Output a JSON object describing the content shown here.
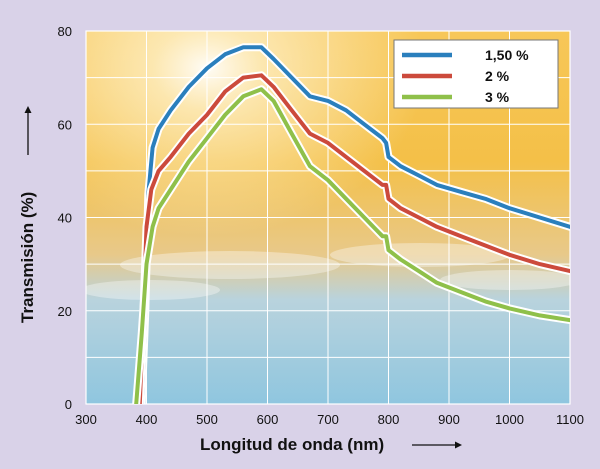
{
  "chart_data": {
    "type": "line",
    "xlabel": "Longitud de onda (nm)",
    "ylabel": "Transmisión (%)",
    "xlim": [
      300,
      1100
    ],
    "ylim": [
      0,
      80
    ],
    "x_ticks": [
      300,
      400,
      500,
      600,
      700,
      800,
      900,
      1000,
      1100
    ],
    "y_ticks": [
      0,
      20,
      40,
      60,
      80
    ],
    "grid": true,
    "legend_position": "top-right",
    "series": [
      {
        "name": "1,50 %",
        "color": "#2a7fbd",
        "points": [
          [
            392,
            0
          ],
          [
            398,
            20
          ],
          [
            403,
            45
          ],
          [
            410,
            55
          ],
          [
            420,
            59
          ],
          [
            440,
            63
          ],
          [
            470,
            68
          ],
          [
            500,
            72
          ],
          [
            530,
            75
          ],
          [
            560,
            76.5
          ],
          [
            590,
            76.5
          ],
          [
            610,
            74
          ],
          [
            640,
            70
          ],
          [
            670,
            66
          ],
          [
            700,
            65
          ],
          [
            730,
            63
          ],
          [
            760,
            60
          ],
          [
            790,
            57
          ],
          [
            796,
            56
          ],
          [
            800,
            53
          ],
          [
            820,
            51
          ],
          [
            850,
            49
          ],
          [
            880,
            47
          ],
          [
            920,
            45.5
          ],
          [
            960,
            44
          ],
          [
            1000,
            42
          ],
          [
            1050,
            40
          ],
          [
            1100,
            38
          ]
        ]
      },
      {
        "name": "2 %",
        "color": "#cc4a3c",
        "points": [
          [
            389,
            0
          ],
          [
            395,
            20
          ],
          [
            400,
            38
          ],
          [
            408,
            46
          ],
          [
            420,
            50
          ],
          [
            440,
            53
          ],
          [
            470,
            58
          ],
          [
            500,
            62
          ],
          [
            530,
            67
          ],
          [
            560,
            70
          ],
          [
            590,
            70.5
          ],
          [
            610,
            68
          ],
          [
            640,
            63
          ],
          [
            670,
            58
          ],
          [
            700,
            56
          ],
          [
            730,
            53
          ],
          [
            760,
            50
          ],
          [
            790,
            47
          ],
          [
            796,
            47
          ],
          [
            800,
            44
          ],
          [
            820,
            42
          ],
          [
            850,
            40
          ],
          [
            880,
            38
          ],
          [
            920,
            36
          ],
          [
            960,
            34
          ],
          [
            1000,
            32
          ],
          [
            1050,
            30
          ],
          [
            1100,
            28.5
          ]
        ]
      },
      {
        "name": "3 %",
        "color": "#8fc04a",
        "points": [
          [
            383,
            0
          ],
          [
            392,
            15
          ],
          [
            400,
            30
          ],
          [
            410,
            38
          ],
          [
            420,
            42
          ],
          [
            440,
            46
          ],
          [
            470,
            52
          ],
          [
            500,
            57
          ],
          [
            530,
            62
          ],
          [
            560,
            66
          ],
          [
            590,
            67.5
          ],
          [
            610,
            65
          ],
          [
            640,
            58
          ],
          [
            670,
            51
          ],
          [
            700,
            48
          ],
          [
            730,
            44
          ],
          [
            760,
            40
          ],
          [
            790,
            36
          ],
          [
            796,
            36
          ],
          [
            800,
            33
          ],
          [
            820,
            31
          ],
          [
            850,
            28.5
          ],
          [
            880,
            26
          ],
          [
            920,
            24
          ],
          [
            960,
            22
          ],
          [
            1000,
            20.5
          ],
          [
            1050,
            19
          ],
          [
            1100,
            18
          ]
        ]
      }
    ]
  }
}
